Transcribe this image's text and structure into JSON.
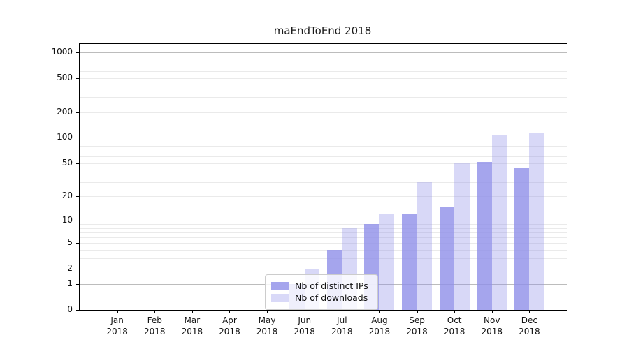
{
  "title": "maEndToEnd 2018",
  "legend": {
    "items": [
      {
        "label": "Nb of distinct IPs",
        "swatch_color": "#a5a5ed"
      },
      {
        "label": "Nb of downloads",
        "swatch_color": "#d9d9f8"
      }
    ]
  },
  "colors": {
    "ips_bar": "rgba(142,142,232,0.8)",
    "downloads_bar": "rgba(142,142,232,0.34)",
    "grid_major": "#bcbcbc",
    "grid_minor": "#eaeaea",
    "axis": "#000000"
  },
  "chart_data": {
    "type": "bar",
    "title": "maEndToEnd 2018",
    "categories": [
      "Jan 2018",
      "Feb 2018",
      "Mar 2018",
      "Apr 2018",
      "May 2018",
      "Jun 2018",
      "Jul 2018",
      "Aug 2018",
      "Sep 2018",
      "Oct 2018",
      "Nov 2018",
      "Dec 2018"
    ],
    "series": [
      {
        "name": "Nb of distinct IPs",
        "values": [
          0,
          0,
          0,
          0,
          0,
          1,
          4,
          9,
          12,
          15,
          52,
          44
        ]
      },
      {
        "name": "Nb of downloads",
        "values": [
          0,
          0,
          0,
          0,
          0,
          2,
          8,
          12,
          30,
          50,
          106,
          115
        ]
      }
    ],
    "xlabel": "",
    "ylabel": "",
    "yscale": "log1p",
    "yticks": [
      0,
      1,
      2,
      5,
      10,
      20,
      50,
      100,
      200,
      500,
      1000
    ],
    "minor_gridlines": [
      2,
      3,
      4,
      5,
      6,
      7,
      8,
      9,
      20,
      30,
      40,
      50,
      60,
      70,
      80,
      90,
      200,
      300,
      400,
      500,
      600,
      700,
      800,
      900
    ],
    "major_gridlines": [
      1,
      10,
      100,
      1000
    ],
    "ylim": [
      0,
      1250
    ],
    "grid": "horizontal major+minor",
    "legend_position": "inside lower-center"
  }
}
